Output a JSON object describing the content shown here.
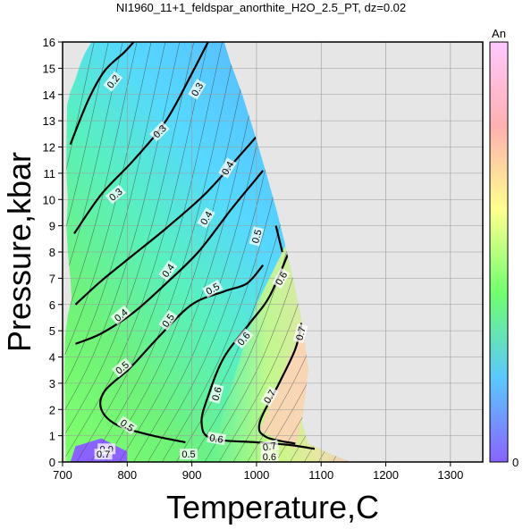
{
  "chart_data": {
    "type": "heatmap",
    "title": "NI1960_11+1_feldspar_anorthite_H2O_2.5_PT, dz=0.02",
    "xlabel": "Temperature,C",
    "ylabel": "Pressure,kbar",
    "xlim": [
      700,
      1350
    ],
    "ylim": [
      0,
      16
    ],
    "x_ticks": [
      700,
      800,
      900,
      1000,
      1100,
      1200,
      1300
    ],
    "y_ticks": [
      0,
      1,
      2,
      3,
      4,
      5,
      6,
      7,
      8,
      9,
      10,
      11,
      12,
      13,
      14,
      15,
      16
    ],
    "grid": true,
    "colorbar": {
      "label": "An",
      "min_label": "0",
      "range": [
        0,
        1
      ],
      "stops": [
        "#8a63ff",
        "#5bc8ff",
        "#6fff6f",
        "#ffff8f",
        "#ffb0b0",
        "#ffc8ff"
      ]
    },
    "contour_interval": 0.02,
    "major_contours": [
      {
        "level": 0.2,
        "points": [
          [
            712,
            12.1
          ],
          [
            740,
            13.8
          ],
          [
            765,
            14.9
          ],
          [
            795,
            15.6
          ],
          [
            810,
            16.0
          ]
        ]
      },
      {
        "level": 0.3,
        "points": [
          [
            718,
            8.7
          ],
          [
            760,
            10.2
          ],
          [
            810,
            11.5
          ],
          [
            860,
            13.0
          ],
          [
            900,
            14.8
          ],
          [
            925,
            16.0
          ]
        ]
      },
      {
        "level": 0.3,
        "points": [
          [
            720,
            6.0
          ],
          [
            760,
            6.9
          ],
          [
            810,
            7.9
          ],
          [
            860,
            8.9
          ],
          [
            920,
            10.2
          ],
          [
            975,
            11.7
          ],
          [
            1000,
            12.4
          ]
        ]
      },
      {
        "level": 0.4,
        "points": [
          [
            720,
            4.5
          ],
          [
            760,
            4.9
          ],
          [
            810,
            5.7
          ],
          [
            860,
            6.8
          ],
          [
            910,
            8.0
          ],
          [
            960,
            9.6
          ],
          [
            1000,
            10.8
          ],
          [
            1010,
            11.1
          ]
        ]
      },
      {
        "level": 0.5,
        "points": [
          [
            1010,
            7.5
          ],
          [
            985,
            6.8
          ],
          [
            950,
            6.5
          ],
          [
            900,
            6.0
          ],
          [
            850,
            4.8
          ],
          [
            805,
            3.6
          ],
          [
            765,
            2.7
          ],
          [
            760,
            2.0
          ],
          [
            785,
            1.4
          ],
          [
            840,
            1.0
          ],
          [
            890,
            0.75
          ]
        ]
      },
      {
        "level": 0.5,
        "points": [
          [
            1030,
            9.0
          ],
          [
            1040,
            8.0
          ]
        ]
      },
      {
        "level": 0.6,
        "points": [
          [
            1050,
            8.0
          ],
          [
            1020,
            6.3
          ],
          [
            990,
            5.3
          ],
          [
            950,
            4.0
          ],
          [
            925,
            2.5
          ],
          [
            915,
            1.5
          ],
          [
            930,
            0.9
          ],
          [
            1000,
            0.75
          ],
          [
            1050,
            0.65
          ],
          [
            1090,
            0.5
          ]
        ]
      },
      {
        "level": 0.7,
        "points": [
          [
            1070,
            5.3
          ],
          [
            1060,
            4.3
          ],
          [
            1035,
            3.0
          ],
          [
            1005,
            1.5
          ],
          [
            1015,
            0.95
          ],
          [
            1060,
            0.7
          ]
        ]
      }
    ],
    "contour_labels": [
      {
        "text": "0.2",
        "x": 778,
        "y": 14.5,
        "angle": -52
      },
      {
        "text": "0.3",
        "x": 908,
        "y": 14.2,
        "angle": -60
      },
      {
        "text": "0.3",
        "x": 850,
        "y": 12.6,
        "angle": -45
      },
      {
        "text": "0.3",
        "x": 782,
        "y": 10.2,
        "angle": -40
      },
      {
        "text": "0.4",
        "x": 955,
        "y": 11.2,
        "angle": -60
      },
      {
        "text": "0.4",
        "x": 922,
        "y": 9.3,
        "angle": -60
      },
      {
        "text": "0.4",
        "x": 863,
        "y": 7.3,
        "angle": -55
      },
      {
        "text": "0.4",
        "x": 790,
        "y": 5.6,
        "angle": -40
      },
      {
        "text": "0.5",
        "x": 1000,
        "y": 8.6,
        "angle": -75
      },
      {
        "text": "0.5",
        "x": 932,
        "y": 6.6,
        "angle": -30
      },
      {
        "text": "0.5",
        "x": 863,
        "y": 5.4,
        "angle": -55
      },
      {
        "text": "0.5",
        "x": 792,
        "y": 3.6,
        "angle": -40
      },
      {
        "text": "0.5",
        "x": 800,
        "y": 1.4,
        "angle": 35
      },
      {
        "text": "0.5",
        "x": 895,
        "y": 0.3,
        "angle": 0
      },
      {
        "text": "0.6",
        "x": 1038,
        "y": 7.0,
        "angle": -60
      },
      {
        "text": "0.6",
        "x": 980,
        "y": 4.7,
        "angle": -50
      },
      {
        "text": "0.6",
        "x": 938,
        "y": 2.6,
        "angle": -75
      },
      {
        "text": "0.6",
        "x": 938,
        "y": 0.9,
        "angle": 10
      },
      {
        "text": "0.6",
        "x": 1020,
        "y": 0.2,
        "angle": 0
      },
      {
        "text": "0.7",
        "x": 1068,
        "y": 4.9,
        "angle": -75
      },
      {
        "text": "0.7",
        "x": 1020,
        "y": 2.5,
        "angle": -60
      },
      {
        "text": "0.7",
        "x": 1020,
        "y": 0.6,
        "angle": -10
      },
      {
        "text": "0.9",
        "x": 768,
        "y": 0.5,
        "angle": 0
      },
      {
        "text": "0.7",
        "x": 763,
        "y": 0.3,
        "angle": 0
      }
    ]
  }
}
